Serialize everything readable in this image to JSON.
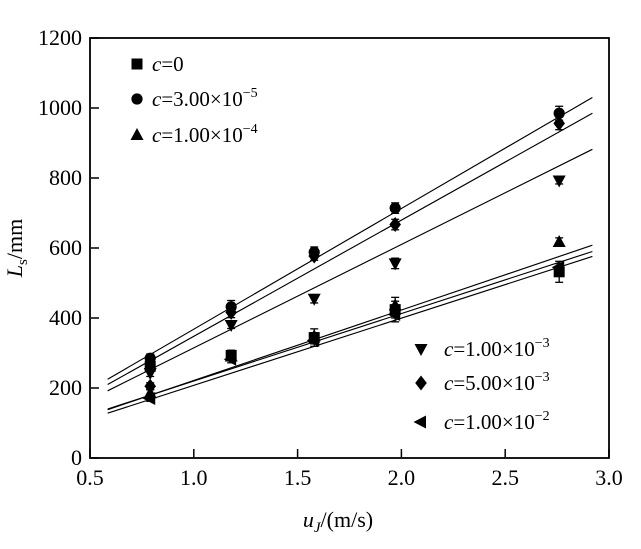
{
  "figure": {
    "background_color": "#ffffff",
    "foreground_color": "#000000"
  },
  "chart_data": {
    "type": "scatter",
    "title": "",
    "xlabel": "u_J/(m/s)",
    "xlabel_parts": {
      "var": "u",
      "sub": "J",
      "rest": "/(m/s)"
    },
    "ylabel": "L_s/mm",
    "ylabel_parts": {
      "var": "L",
      "sub": "s",
      "rest": "/mm"
    },
    "xlim": [
      0.5,
      3.0
    ],
    "ylim": [
      0,
      1200
    ],
    "xticks": [
      {
        "v": 0.5,
        "label": "0.5"
      },
      {
        "v": 1.0,
        "label": "1.0"
      },
      {
        "v": 1.5,
        "label": "1.5"
      },
      {
        "v": 2.0,
        "label": "2.0"
      },
      {
        "v": 2.5,
        "label": "2.5"
      },
      {
        "v": 3.0,
        "label": "3.0"
      }
    ],
    "yticks": [
      {
        "v": 0,
        "label": "0"
      },
      {
        "v": 200,
        "label": "200"
      },
      {
        "v": 400,
        "label": "400"
      },
      {
        "v": 600,
        "label": "600"
      },
      {
        "v": 800,
        "label": "800"
      },
      {
        "v": 1000,
        "label": "1000"
      },
      {
        "v": 1200,
        "label": "1200"
      }
    ],
    "grid": false,
    "marker_color": "#000000",
    "line_color": "#000000",
    "x": [
      0.79,
      1.18,
      1.58,
      1.97,
      2.76
    ],
    "series": [
      {
        "id": "c0",
        "marker": "square",
        "legend": {
          "var": "c",
          "base": "=0",
          "exp": ""
        },
        "values": [
          262,
          293,
          344,
          424,
          532
        ],
        "errors": [
          15,
          15,
          25,
          35,
          30
        ],
        "fit": {
          "x": [
            0.585,
            2.92
          ],
          "y": [
            140,
            590
          ]
        }
      },
      {
        "id": "c3e5",
        "marker": "circle",
        "legend": {
          "var": "c",
          "base": "=3.00×10",
          "exp": "−5"
        },
        "values": [
          285,
          432,
          588,
          714,
          985
        ],
        "errors": [
          12,
          18,
          15,
          15,
          20
        ],
        "fit": {
          "x": [
            0.585,
            2.92
          ],
          "y": [
            225,
            1030
          ]
        }
      },
      {
        "id": "c1e4",
        "marker": "triangle-up",
        "legend": {
          "var": "c",
          "base": "=1.00×10",
          "exp": "−4"
        },
        "values": [
          185,
          290,
          348,
          436,
          617
        ],
        "errors": [
          10,
          10,
          10,
          12,
          12
        ],
        "fit": {
          "x": [
            0.585,
            2.92
          ],
          "y": [
            138,
            608
          ]
        }
      },
      {
        "id": "c1e3",
        "marker": "triangle-down",
        "legend": {
          "var": "c",
          "base": "=1.00×10",
          "exp": "−3"
        },
        "values": [
          243,
          380,
          455,
          556,
          793
        ],
        "errors": [
          10,
          10,
          12,
          15,
          10
        ],
        "fit": {
          "x": [
            0.585,
            2.92
          ],
          "y": [
            192,
            882
          ]
        }
      },
      {
        "id": "c5e3",
        "marker": "diamond",
        "legend": {
          "var": "c",
          "base": "=5.00×10",
          "exp": "−3"
        },
        "values": [
          205,
          416,
          577,
          667,
          956
        ],
        "errors": [
          10,
          15,
          12,
          15,
          18
        ],
        "fit": {
          "x": [
            0.585,
            2.92
          ],
          "y": [
            210,
            985
          ]
        }
      },
      {
        "id": "c1e2",
        "marker": "triangle-left",
        "legend": {
          "var": "c",
          "base": "=1.00×10",
          "exp": "−2"
        },
        "values": [
          170,
          282,
          336,
          410,
          545
        ],
        "errors": [
          8,
          10,
          10,
          10,
          10
        ],
        "fit": {
          "x": [
            0.585,
            2.92
          ],
          "y": [
            128,
            576
          ]
        }
      }
    ],
    "legends": [
      {
        "name": "upper-left",
        "series": [
          0,
          1,
          2
        ]
      },
      {
        "name": "lower-right",
        "series": [
          3,
          4,
          5
        ]
      }
    ]
  }
}
